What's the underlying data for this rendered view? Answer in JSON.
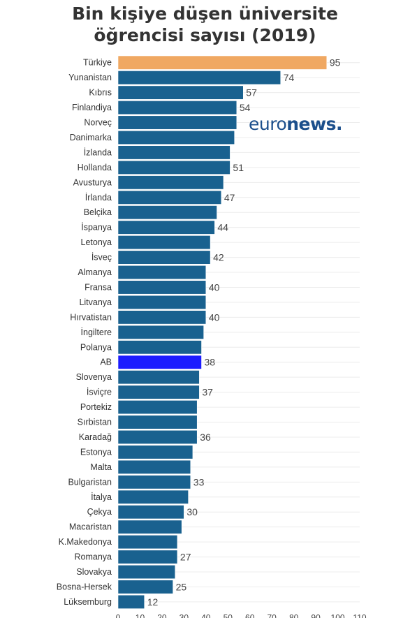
{
  "colors": {
    "default": "#19618f",
    "highlight": "#f0a862",
    "eu": "#1c1cff",
    "logo": "#1c4f8c"
  },
  "logo": {
    "text_light": "euro",
    "text_bold": "news."
  },
  "chart_data": {
    "type": "bar",
    "orientation": "horizontal",
    "title": "Bin kişiye düşen üniversite öğrencisi sayısı (2019)",
    "title_lines": [
      "Bin kişiye düşen üniversite",
      "öğrencisi sayısı (2019)"
    ],
    "xlabel": "",
    "ylabel": "",
    "xlim": [
      0,
      110
    ],
    "xticks": [
      0,
      10,
      20,
      30,
      40,
      50,
      60,
      70,
      80,
      90,
      100,
      110
    ],
    "grid": true,
    "legend": "none",
    "highlight_categories": {
      "Türkiye": "highlight",
      "AB": "eu"
    },
    "categories": [
      "Türkiye",
      "Yunanistan",
      "Kıbrıs",
      "Finlandiya",
      "Norveç",
      "Danimarka",
      "İzlanda",
      "Hollanda",
      "Avusturya",
      "İrlanda",
      "Belçika",
      "İspanya",
      "Letonya",
      "İsveç",
      "Almanya",
      "Fransa",
      "Litvanya",
      "Hırvatistan",
      "İngiltere",
      "Polanya",
      "AB",
      "Slovenya",
      "İsviçre",
      "Portekiz",
      "Sırbistan",
      "Karadağ",
      "Estonya",
      "Malta",
      "Bulgaristan",
      "İtalya",
      "Çekya",
      "Macaristan",
      "K.Makedonya",
      "Romanya",
      "Slovakya",
      "Bosna-Hersek",
      "Lüksemburg"
    ],
    "values": [
      95,
      74,
      57,
      54,
      54,
      53,
      51,
      51,
      48,
      47,
      45,
      44,
      42,
      42,
      40,
      40,
      40,
      40,
      39,
      38,
      38,
      37,
      37,
      36,
      36,
      36,
      34,
      33,
      33,
      32,
      30,
      29,
      27,
      27,
      26,
      25,
      12
    ],
    "data_labels": [
      95,
      74,
      57,
      54,
      null,
      null,
      null,
      51,
      null,
      47,
      null,
      44,
      null,
      42,
      null,
      40,
      null,
      40,
      null,
      null,
      38,
      null,
      37,
      null,
      null,
      36,
      null,
      null,
      33,
      null,
      30,
      null,
      null,
      27,
      null,
      25,
      12
    ]
  }
}
